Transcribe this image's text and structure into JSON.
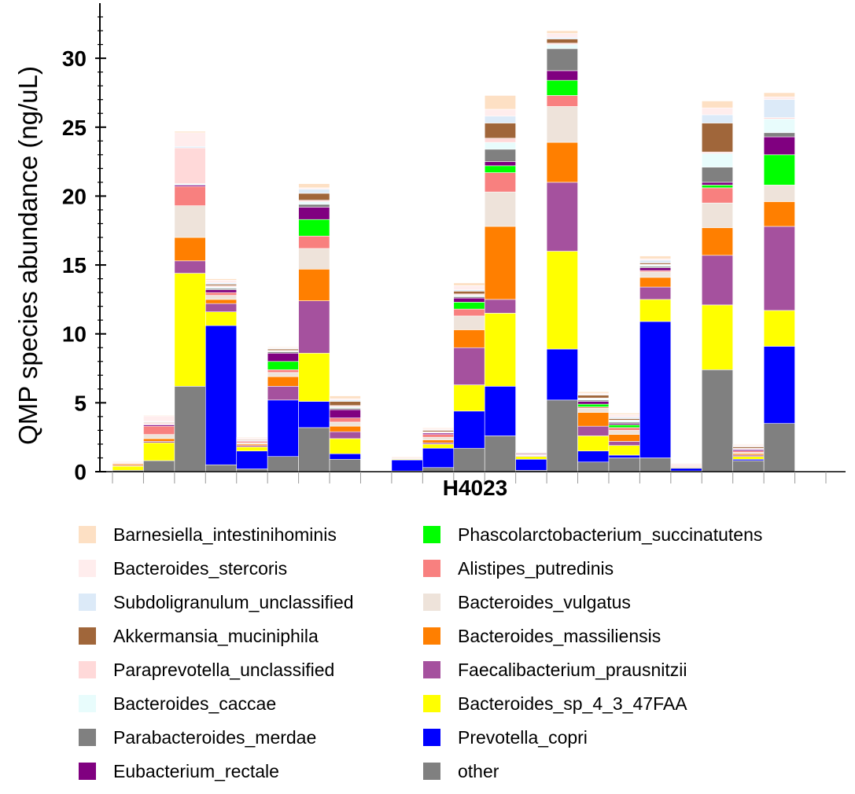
{
  "chart_data": {
    "type": "bar",
    "stacked": true,
    "xlabel": "H4023",
    "ylabel": "QMP species abundance (ng/uL)",
    "ylim": [
      0,
      34
    ],
    "yticks": [
      0,
      5,
      10,
      15,
      20,
      25,
      30
    ],
    "legend_position": "bottom",
    "n_bars": 22,
    "gap_after_bar": 8,
    "series": [
      {
        "name": "other",
        "color": "#808080",
        "values": [
          0.1,
          0.8,
          6.2,
          0.5,
          0.2,
          1.1,
          3.2,
          0.9,
          0.05,
          0.3,
          1.7,
          2.6,
          0.1,
          5.2,
          0.7,
          1.0,
          1.0,
          0.05,
          7.4,
          0.8,
          3.5,
          0.05
        ]
      },
      {
        "name": "Prevotella_copri",
        "color": "#0000ff",
        "values": [
          0.0,
          0.0,
          0.0,
          10.1,
          1.3,
          4.1,
          1.9,
          0.4,
          0.8,
          1.4,
          2.7,
          3.6,
          0.8,
          3.7,
          0.8,
          0.2,
          9.9,
          0.2,
          0.0,
          0.1,
          5.6,
          0.0
        ]
      },
      {
        "name": "Bacteroides_sp_4_3_47FAA",
        "color": "#ffff00",
        "values": [
          0.3,
          1.3,
          8.2,
          1.0,
          0.3,
          0.0,
          3.5,
          1.1,
          0.05,
          0.3,
          1.9,
          5.3,
          0.2,
          7.1,
          1.1,
          0.7,
          1.6,
          0.05,
          4.7,
          0.2,
          2.6,
          0.0
        ]
      },
      {
        "name": "Faecalibacterium_prausnitzii",
        "color": "#a5519e",
        "values": [
          0.05,
          0.1,
          0.9,
          0.6,
          0.1,
          1.0,
          3.8,
          0.5,
          0.0,
          0.1,
          2.7,
          1.0,
          0.05,
          5.0,
          0.7,
          0.3,
          0.9,
          0.05,
          3.6,
          0.1,
          6.1,
          0.0
        ]
      },
      {
        "name": "Bacteroides_massiliensis",
        "color": "#ff7f00",
        "values": [
          0.1,
          0.2,
          1.7,
          0.3,
          0.1,
          0.7,
          2.3,
          0.4,
          0.0,
          0.2,
          1.3,
          5.3,
          0.0,
          2.9,
          1.0,
          0.5,
          0.7,
          0.05,
          2.0,
          0.1,
          1.8,
          0.0
        ]
      },
      {
        "name": "Bacteroides_vulgatus",
        "color": "#eee3da",
        "values": [
          0.05,
          0.3,
          2.3,
          0.3,
          0.1,
          0.3,
          1.5,
          0.3,
          0.05,
          0.2,
          1.0,
          2.5,
          0.05,
          2.6,
          0.3,
          0.3,
          0.4,
          0.05,
          1.8,
          0.1,
          1.2,
          0.0
        ]
      },
      {
        "name": "Alistipes_putredinis",
        "color": "#f8807f",
        "values": [
          0.05,
          0.6,
          1.4,
          0.2,
          0.1,
          0.2,
          0.9,
          0.3,
          0.05,
          0.2,
          0.5,
          1.4,
          0.05,
          0.8,
          0.1,
          0.2,
          0.1,
          0.05,
          1.1,
          0.1,
          0.0,
          0.0
        ]
      },
      {
        "name": "Phascolarctobacterium_succinatutens",
        "color": "#00ff00",
        "values": [
          0.0,
          0.0,
          0.0,
          0.0,
          0.0,
          0.6,
          1.2,
          0.0,
          0.0,
          0.0,
          0.5,
          0.5,
          0.0,
          1.1,
          0.2,
          0.2,
          0.0,
          0.0,
          0.2,
          0.0,
          2.2,
          0.0
        ]
      },
      {
        "name": "Eubacterium_rectale",
        "color": "#800080",
        "values": [
          0.0,
          0.1,
          0.1,
          0.2,
          0.05,
          0.6,
          0.9,
          0.6,
          0.0,
          0.1,
          0.3,
          0.3,
          0.05,
          0.7,
          0.2,
          0.1,
          0.2,
          0.0,
          0.2,
          0.1,
          1.3,
          0.0
        ]
      },
      {
        "name": "Parabacteroides_merdae",
        "color": "#808080",
        "values": [
          0.0,
          0.0,
          0.0,
          0.1,
          0.0,
          0.1,
          0.2,
          0.1,
          0.0,
          0.0,
          0.1,
          0.9,
          0.0,
          1.6,
          0.1,
          0.1,
          0.1,
          0.0,
          1.1,
          0.0,
          0.3,
          0.0
        ]
      },
      {
        "name": "Bacteroides_caccae",
        "color": "#e8fcfc",
        "values": [
          0.0,
          0.05,
          0.1,
          0.1,
          0.05,
          0.05,
          0.2,
          0.1,
          0.0,
          0.05,
          0.1,
          0.5,
          0.0,
          0.3,
          0.1,
          0.1,
          0.1,
          0.0,
          1.0,
          0.05,
          1.0,
          0.0
        ]
      },
      {
        "name": "Paraprevotella_unclassified",
        "color": "#ffd9d9",
        "values": [
          0.0,
          0.1,
          2.6,
          0.1,
          0.0,
          0.05,
          0.1,
          0.1,
          0.0,
          0.05,
          0.1,
          0.3,
          0.0,
          0.1,
          0.05,
          0.05,
          0.05,
          0.0,
          0.1,
          0.05,
          0.1,
          0.0
        ]
      },
      {
        "name": "Akkermansia_muciniphila",
        "color": "#a0663a",
        "values": [
          0.0,
          0.05,
          0.0,
          0.1,
          0.05,
          0.1,
          0.5,
          0.3,
          0.0,
          0.1,
          0.2,
          1.1,
          0.05,
          0.3,
          0.2,
          0.1,
          0.1,
          0.0,
          2.1,
          0.1,
          0.0,
          0.0
        ]
      },
      {
        "name": "Subdoligranulum_unclassified",
        "color": "#dceaf8",
        "values": [
          0.0,
          0.05,
          0.1,
          0.1,
          0.0,
          0.05,
          0.3,
          0.1,
          0.0,
          0.05,
          0.1,
          0.5,
          0.0,
          0.1,
          0.05,
          0.1,
          0.2,
          0.0,
          0.6,
          0.05,
          1.3,
          0.0
        ]
      },
      {
        "name": "Bacteroides_stercoris",
        "color": "#ffeded",
        "values": [
          0.05,
          0.4,
          1.0,
          0.2,
          0.1,
          0.05,
          0.1,
          0.1,
          0.05,
          0.1,
          0.3,
          0.5,
          0.05,
          0.3,
          0.1,
          0.2,
          0.1,
          0.05,
          0.5,
          0.1,
          0.2,
          0.0
        ]
      },
      {
        "name": "Barnesiella_intestinihominis",
        "color": "#fde0c4",
        "values": [
          0.05,
          0.05,
          0.1,
          0.1,
          0.05,
          0.05,
          0.3,
          0.2,
          0.05,
          0.05,
          0.2,
          1.0,
          0.0,
          0.2,
          0.1,
          0.1,
          0.2,
          0.05,
          0.5,
          0.05,
          0.3,
          0.0
        ]
      }
    ]
  },
  "legend": {
    "left": [
      {
        "label": "Barnesiella_intestinihominis",
        "color": "#fde0c4"
      },
      {
        "label": "Bacteroides_stercoris",
        "color": "#ffeded"
      },
      {
        "label": "Subdoligranulum_unclassified",
        "color": "#dceaf8"
      },
      {
        "label": "Akkermansia_muciniphila",
        "color": "#a0663a"
      },
      {
        "label": "Paraprevotella_unclassified",
        "color": "#ffd9d9"
      },
      {
        "label": "Bacteroides_caccae",
        "color": "#e8fcfc"
      },
      {
        "label": "Parabacteroides_merdae",
        "color": "#808080"
      },
      {
        "label": "Eubacterium_rectale",
        "color": "#800080"
      }
    ],
    "right": [
      {
        "label": "Phascolarctobacterium_succinatutens",
        "color": "#00ff00"
      },
      {
        "label": "Alistipes_putredinis",
        "color": "#f8807f"
      },
      {
        "label": "Bacteroides_vulgatus",
        "color": "#eee3da"
      },
      {
        "label": "Bacteroides_massiliensis",
        "color": "#ff7f00"
      },
      {
        "label": "Faecalibacterium_prausnitzii",
        "color": "#a5519e"
      },
      {
        "label": "Bacteroides_sp_4_3_47FAA",
        "color": "#ffff00"
      },
      {
        "label": "Prevotella_copri",
        "color": "#0000ff"
      },
      {
        "label": "other",
        "color": "#808080"
      }
    ]
  }
}
